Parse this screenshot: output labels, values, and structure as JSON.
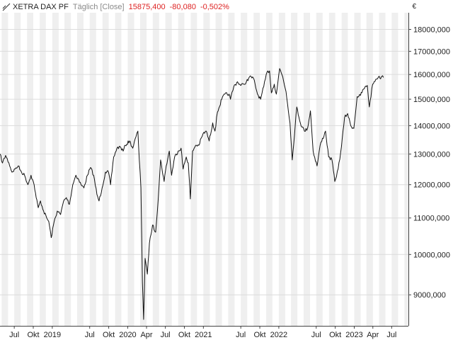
{
  "header": {
    "symbol": "XETRA DAX PF",
    "interval": "Täglich [Close]",
    "last": "15875,400",
    "change": "-80,080",
    "change_pct": "-0,502%"
  },
  "currency": "€",
  "colors": {
    "line": "#111111",
    "band": "#efefef",
    "grid": "#dcdcdc",
    "negative": "#dd2222",
    "text": "#222222"
  },
  "chart_data": {
    "type": "line",
    "title": "",
    "xlabel": "",
    "ylabel": "",
    "y_scale": "log",
    "ylim": [
      8300,
      18800
    ],
    "y_ticks": [
      9000,
      10000,
      11000,
      12000,
      13000,
      14000,
      15000,
      16000,
      17000,
      18000
    ],
    "y_tick_labels": [
      "9000,000",
      "10000,000",
      "11000,000",
      "12000,000",
      "13000,000",
      "14000,000",
      "15000,000",
      "16000,000",
      "17000,000",
      "18000,000"
    ],
    "xlim": [
      "2018-04-23",
      "2023-09-20"
    ],
    "x_ticks": [
      {
        "date": "2018-07-01",
        "label": "Jul"
      },
      {
        "date": "2018-10-01",
        "label": "Okt"
      },
      {
        "date": "2019-01-01",
        "label": "2019"
      },
      {
        "date": "2019-07-01",
        "label": "Jul"
      },
      {
        "date": "2019-10-01",
        "label": "Okt"
      },
      {
        "date": "2020-01-01",
        "label": "2020"
      },
      {
        "date": "2020-04-01",
        "label": "Apr"
      },
      {
        "date": "2020-07-01",
        "label": "Jul"
      },
      {
        "date": "2020-10-01",
        "label": "Okt"
      },
      {
        "date": "2021-01-01",
        "label": "2021"
      },
      {
        "date": "2021-07-01",
        "label": "Jul"
      },
      {
        "date": "2021-10-01",
        "label": "Okt"
      },
      {
        "date": "2022-01-01",
        "label": "2022"
      },
      {
        "date": "2022-07-01",
        "label": "Jul"
      },
      {
        "date": "2022-10-01",
        "label": "Okt"
      },
      {
        "date": "2023-01-01",
        "label": "2023"
      },
      {
        "date": "2023-04-01",
        "label": "Apr"
      },
      {
        "date": "2023-07-01",
        "label": "Jul"
      }
    ],
    "series": [
      {
        "points": [
          [
            "2018-04-23",
            13000
          ],
          [
            "2018-05-05",
            12700
          ],
          [
            "2018-05-20",
            12950
          ],
          [
            "2018-06-05",
            12700
          ],
          [
            "2018-06-20",
            12400
          ],
          [
            "2018-07-05",
            12500
          ],
          [
            "2018-07-20",
            12600
          ],
          [
            "2018-08-05",
            12400
          ],
          [
            "2018-08-20",
            12300
          ],
          [
            "2018-09-05",
            12000
          ],
          [
            "2018-09-20",
            12300
          ],
          [
            "2018-10-05",
            12000
          ],
          [
            "2018-10-15",
            11600
          ],
          [
            "2018-10-25",
            11300
          ],
          [
            "2018-11-05",
            11500
          ],
          [
            "2018-11-20",
            11200
          ],
          [
            "2018-12-05",
            11000
          ],
          [
            "2018-12-15",
            10900
          ],
          [
            "2018-12-27",
            10450
          ],
          [
            "2019-01-10",
            10900
          ],
          [
            "2019-01-25",
            11200
          ],
          [
            "2019-02-10",
            11100
          ],
          [
            "2019-02-25",
            11500
          ],
          [
            "2019-03-10",
            11600
          ],
          [
            "2019-03-25",
            11400
          ],
          [
            "2019-04-10",
            12000
          ],
          [
            "2019-04-25",
            12300
          ],
          [
            "2019-05-05",
            12200
          ],
          [
            "2019-05-20",
            12000
          ],
          [
            "2019-06-03",
            11900
          ],
          [
            "2019-06-20",
            12300
          ],
          [
            "2019-07-05",
            12550
          ],
          [
            "2019-07-20",
            12300
          ],
          [
            "2019-08-05",
            11700
          ],
          [
            "2019-08-15",
            11500
          ],
          [
            "2019-08-30",
            11900
          ],
          [
            "2019-09-15",
            12400
          ],
          [
            "2019-09-30",
            12400
          ],
          [
            "2019-10-10",
            12000
          ],
          [
            "2019-10-25",
            12900
          ],
          [
            "2019-11-10",
            13200
          ],
          [
            "2019-11-25",
            13250
          ],
          [
            "2019-12-10",
            13100
          ],
          [
            "2019-12-20",
            13300
          ],
          [
            "2020-01-10",
            13450
          ],
          [
            "2020-01-25",
            13200
          ],
          [
            "2020-02-10",
            13600
          ],
          [
            "2020-02-19",
            13800
          ],
          [
            "2020-02-26",
            12800
          ],
          [
            "2020-03-05",
            11900
          ],
          [
            "2020-03-12",
            9300
          ],
          [
            "2020-03-18",
            8440
          ],
          [
            "2020-03-25",
            9900
          ],
          [
            "2020-04-05",
            9500
          ],
          [
            "2020-04-15",
            10300
          ],
          [
            "2020-04-30",
            10800
          ],
          [
            "2020-05-15",
            10600
          ],
          [
            "2020-05-28",
            11600
          ],
          [
            "2020-06-08",
            12800
          ],
          [
            "2020-06-25",
            12100
          ],
          [
            "2020-07-05",
            12600
          ],
          [
            "2020-07-20",
            13100
          ],
          [
            "2020-07-31",
            12300
          ],
          [
            "2020-08-15",
            12900
          ],
          [
            "2020-09-01",
            13100
          ],
          [
            "2020-09-15",
            13200
          ],
          [
            "2020-09-25",
            12500
          ],
          [
            "2020-10-10",
            12900
          ],
          [
            "2020-10-20",
            12700
          ],
          [
            "2020-10-30",
            11560
          ],
          [
            "2020-11-10",
            13100
          ],
          [
            "2020-11-25",
            13300
          ],
          [
            "2020-12-10",
            13300
          ],
          [
            "2020-12-30",
            13700
          ],
          [
            "2021-01-15",
            13800
          ],
          [
            "2021-01-29",
            13450
          ],
          [
            "2021-02-15",
            14100
          ],
          [
            "2021-02-26",
            13800
          ],
          [
            "2021-03-10",
            14500
          ],
          [
            "2021-03-31",
            15000
          ],
          [
            "2021-04-15",
            15200
          ],
          [
            "2021-05-05",
            15200
          ],
          [
            "2021-05-12",
            15000
          ],
          [
            "2021-05-28",
            15500
          ],
          [
            "2021-06-15",
            15700
          ],
          [
            "2021-06-30",
            15550
          ],
          [
            "2021-07-15",
            15600
          ],
          [
            "2021-07-28",
            15700
          ],
          [
            "2021-08-12",
            15900
          ],
          [
            "2021-08-31",
            15850
          ],
          [
            "2021-09-20",
            15200
          ],
          [
            "2021-10-05",
            15000
          ],
          [
            "2021-10-20",
            15500
          ],
          [
            "2021-11-05",
            16100
          ],
          [
            "2021-11-17",
            16150
          ],
          [
            "2021-11-26",
            15250
          ],
          [
            "2021-12-10",
            15600
          ],
          [
            "2021-12-20",
            15200
          ],
          [
            "2022-01-05",
            16250
          ],
          [
            "2022-01-20",
            15900
          ],
          [
            "2022-02-05",
            15300
          ],
          [
            "2022-02-24",
            14100
          ],
          [
            "2022-03-07",
            12800
          ],
          [
            "2022-03-29",
            14700
          ],
          [
            "2022-04-15",
            14100
          ],
          [
            "2022-05-05",
            13800
          ],
          [
            "2022-05-20",
            13900
          ],
          [
            "2022-06-03",
            14550
          ],
          [
            "2022-06-16",
            13100
          ],
          [
            "2022-07-05",
            12600
          ],
          [
            "2022-07-20",
            13300
          ],
          [
            "2022-08-15",
            13800
          ],
          [
            "2022-08-30",
            12900
          ],
          [
            "2022-09-15",
            12800
          ],
          [
            "2022-09-29",
            12100
          ],
          [
            "2022-10-15",
            12500
          ],
          [
            "2022-10-31",
            13250
          ],
          [
            "2022-11-15",
            14300
          ],
          [
            "2022-11-30",
            14450
          ],
          [
            "2022-12-15",
            14000
          ],
          [
            "2022-12-30",
            13900
          ],
          [
            "2023-01-15",
            15100
          ],
          [
            "2023-01-31",
            15150
          ],
          [
            "2023-02-15",
            15400
          ],
          [
            "2023-03-05",
            15550
          ],
          [
            "2023-03-15",
            14700
          ],
          [
            "2023-03-31",
            15600
          ],
          [
            "2023-04-15",
            15800
          ],
          [
            "2023-04-28",
            15900
          ],
          [
            "2023-05-05",
            15850
          ],
          [
            "2023-05-12",
            15900
          ],
          [
            "2023-05-18",
            15950
          ],
          [
            "2023-05-22",
            15875
          ]
        ]
      }
    ]
  }
}
